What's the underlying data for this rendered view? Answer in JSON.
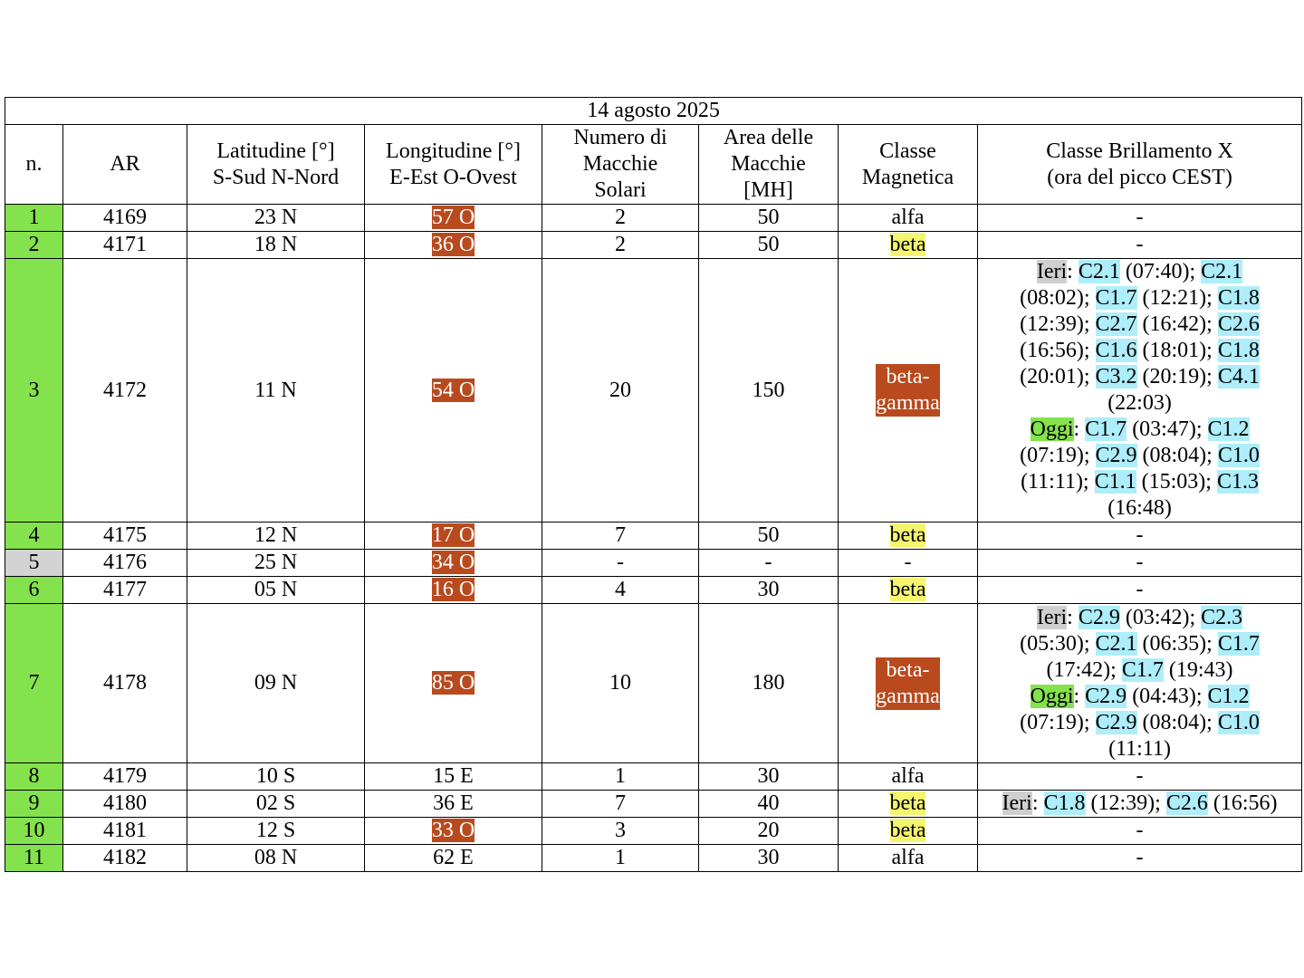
{
  "date": "14 agosto 2025",
  "headers": {
    "n": "n.",
    "ar": "AR",
    "lat": [
      "Latitudine [°]",
      "S-Sud N-Nord"
    ],
    "lon": [
      "Longitudine [°]",
      "E-Est O-Ovest"
    ],
    "spots": [
      "Numero di",
      "Macchie",
      "Solari"
    ],
    "area": [
      "Area delle",
      "Macchie",
      "[MH]"
    ],
    "mag": [
      "Classe",
      "Magnetica"
    ],
    "flare": [
      "Classe Brillamento X",
      "(ora del picco CEST)"
    ]
  },
  "colors": {
    "n_active": "#84e24c",
    "n_inactive": "#d3d3d3",
    "west_longitude": "#b84a1e",
    "beta_highlight": "#f4f570",
    "betagamma_highlight": "#b84a1e",
    "flare_class_highlight": "#aeeefa",
    "ieri_highlight": "#cfcfcf",
    "oggi_highlight": "#84e24c"
  },
  "rows": [
    {
      "n": "1",
      "ar": "4169",
      "lat": "23 N",
      "lon": "57 O",
      "spots": "2",
      "area": "50",
      "mag": "alfa",
      "flare": "-"
    },
    {
      "n": "2",
      "ar": "4171",
      "lat": "18 N",
      "lon": "36 O",
      "spots": "2",
      "area": "50",
      "mag": "beta",
      "flare": "-"
    },
    {
      "n": "3",
      "ar": "4172",
      "lat": "11 N",
      "lon": "54 O",
      "spots": "20",
      "area": "150",
      "mag_lines": [
        "beta-",
        "gamma"
      ]
    },
    {
      "n": "4",
      "ar": "4175",
      "lat": "12 N",
      "lon": "17 O",
      "spots": "7",
      "area": "50",
      "mag": "beta",
      "flare": "-"
    },
    {
      "n": "5",
      "ar": "4176",
      "lat": "25 N",
      "lon": "34 O",
      "spots": "-",
      "area": "-",
      "mag": "-",
      "flare": "-"
    },
    {
      "n": "6",
      "ar": "4177",
      "lat": "05 N",
      "lon": "16 O",
      "spots": "4",
      "area": "30",
      "mag": "beta",
      "flare": "-"
    },
    {
      "n": "7",
      "ar": "4178",
      "lat": "09 N",
      "lon": "85 O",
      "spots": "10",
      "area": "180",
      "mag_lines": [
        "beta-",
        "gamma"
      ]
    },
    {
      "n": "8",
      "ar": "4179",
      "lat": "10 S",
      "lon": "15 E",
      "spots": "1",
      "area": "30",
      "mag": "alfa",
      "flare": "-"
    },
    {
      "n": "9",
      "ar": "4180",
      "lat": "02 S",
      "lon": "36 E",
      "spots": "7",
      "area": "40",
      "mag": "beta"
    },
    {
      "n": "10",
      "ar": "4181",
      "lat": "12 S",
      "lon": "33 O",
      "spots": "3",
      "area": "20",
      "mag": "beta",
      "flare": "-"
    },
    {
      "n": "11",
      "ar": "4182",
      "lat": "08 N",
      "lon": "62 E",
      "spots": "1",
      "area": "30",
      "mag": "alfa",
      "flare": "-"
    }
  ],
  "flares": {
    "r3": {
      "ieri": "Ieri",
      "oggi": "Oggi",
      "l1": [
        "C2.1",
        " (07:40); ",
        "C2.1"
      ],
      "l2": [
        "(08:02); ",
        "C1.7",
        " (12:21); ",
        "C1.8"
      ],
      "l3": [
        "(12:39); ",
        "C2.7",
        " (16:42); ",
        "C2.6"
      ],
      "l4": [
        "(16:56); ",
        "C1.6",
        " (18:01); ",
        "C1.8"
      ],
      "l5": [
        "(20:01); ",
        "C3.2",
        " (20:19); ",
        "C4.1"
      ],
      "l6": "(22:03)",
      "l7": [
        "C1.7",
        " (03:47); ",
        "C1.2"
      ],
      "l8": [
        "(07:19); ",
        "C2.9",
        " (08:04); ",
        "C1.0"
      ],
      "l9": [
        "(11:11); ",
        "C1.1",
        " (15:03); ",
        "C1.3"
      ],
      "l10": "(16:48)"
    },
    "r7": {
      "ieri": "Ieri",
      "oggi": "Oggi",
      "l1": [
        "C2.9",
        " (03:42); ",
        "C2.3"
      ],
      "l2": [
        "(05:30); ",
        "C2.1",
        " (06:35); ",
        "C1.7"
      ],
      "l3": [
        "(17:42); ",
        "C1.7",
        " (19:43)"
      ],
      "l4": [
        "C2.9",
        " (04:43); ",
        "C1.2"
      ],
      "l5": [
        "(07:19); ",
        "C2.9",
        " (08:04); ",
        "C1.0"
      ],
      "l6": "(11:11)"
    },
    "r9": {
      "ieri": "Ieri",
      "l1": [
        "C1.8",
        " (12:39); ",
        "C2.6",
        " (16:56)"
      ]
    }
  }
}
